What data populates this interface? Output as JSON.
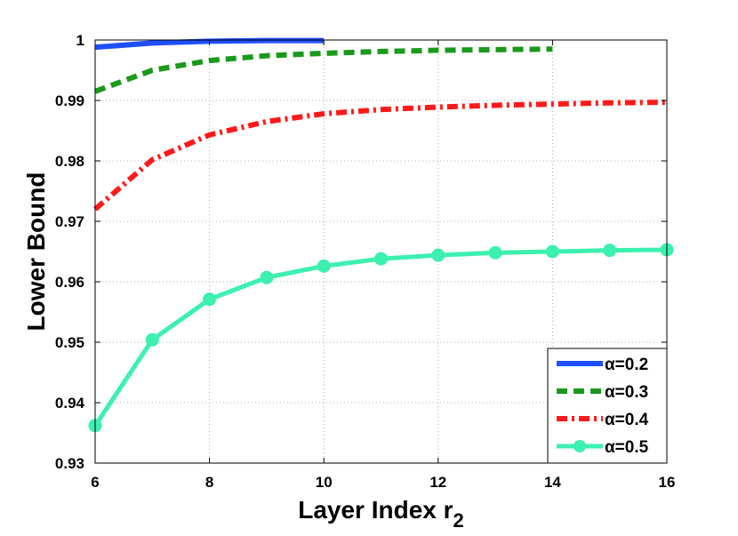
{
  "chart_data": {
    "type": "line",
    "title": "",
    "xlabel": "Layer Index r",
    "xlabel_sub": "2",
    "ylabel": "Lower Bound",
    "xlim": [
      6,
      16
    ],
    "ylim": [
      0.93,
      1.0
    ],
    "xticks": [
      6,
      8,
      10,
      12,
      14,
      16
    ],
    "xtick_labels": [
      "6",
      "8",
      "10",
      "12",
      "14",
      "16"
    ],
    "yticks": [
      0.93,
      0.94,
      0.95,
      0.96,
      0.97,
      0.98,
      0.99,
      1.0
    ],
    "ytick_labels": [
      "0.93",
      "0.94",
      "0.95",
      "0.96",
      "0.97",
      "0.98",
      "0.99",
      "1"
    ],
    "grid": true,
    "legend_position": "bottom-right",
    "series": [
      {
        "name": "α=0.2",
        "color": "#1f4fff",
        "style": "solid",
        "marker": "none",
        "x": [
          6,
          7,
          8,
          9,
          10
        ],
        "y": [
          0.9988,
          0.9995,
          0.9998,
          0.9999,
          0.9999
        ]
      },
      {
        "name": "α=0.3",
        "color": "#1a9a1a",
        "style": "dashed",
        "marker": "none",
        "x": [
          6,
          7,
          8,
          9,
          10,
          11,
          12,
          13,
          14
        ],
        "y": [
          0.9915,
          0.995,
          0.9966,
          0.9974,
          0.9978,
          0.9981,
          0.9983,
          0.9984,
          0.9985
        ]
      },
      {
        "name": "α=0.4",
        "color": "#ff1a1a",
        "style": "dashdot",
        "marker": "none",
        "x": [
          6,
          7,
          8,
          9,
          10,
          11,
          12,
          13,
          14,
          15,
          16
        ],
        "y": [
          0.972,
          0.9802,
          0.9843,
          0.9865,
          0.9878,
          0.9885,
          0.9889,
          0.9892,
          0.9894,
          0.9896,
          0.9897
        ]
      },
      {
        "name": "α=0.5",
        "color": "#3cf0b0",
        "style": "solid",
        "marker": "circle",
        "x": [
          6,
          7,
          8,
          9,
          10,
          11,
          12,
          13,
          14,
          15,
          16
        ],
        "y": [
          0.9362,
          0.9504,
          0.9571,
          0.9607,
          0.9626,
          0.9638,
          0.9644,
          0.9648,
          0.965,
          0.9652,
          0.9653
        ]
      }
    ]
  }
}
